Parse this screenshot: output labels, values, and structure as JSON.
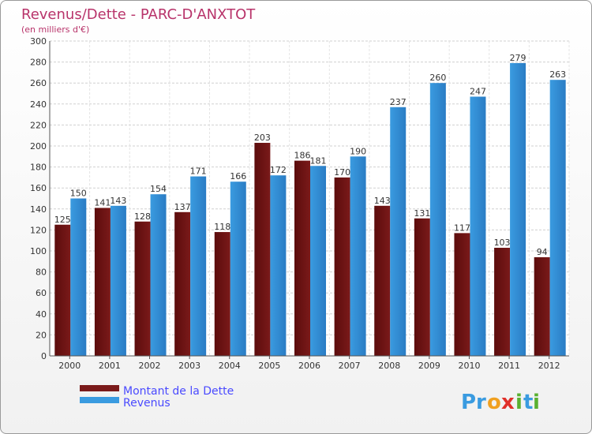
{
  "colors": {
    "dette": "#7a1a1a",
    "revenus": "#3a9be0",
    "title": "#b8336a",
    "legend_text": "#4a4aff"
  },
  "chart_data": {
    "type": "bar",
    "title": "Revenus/Dette - PARC-D'ANXTOT",
    "subtitle": "(en milliers d'€)",
    "categories": [
      "2000",
      "2001",
      "2002",
      "2003",
      "2004",
      "2005",
      "2006",
      "2007",
      "2008",
      "2009",
      "2010",
      "2011",
      "2012"
    ],
    "series": [
      {
        "name": "Montant de la Dette",
        "values": [
          125,
          141,
          128,
          137,
          118,
          203,
          186,
          170,
          143,
          131,
          117,
          103,
          94
        ]
      },
      {
        "name": "Revenus",
        "values": [
          150,
          143,
          154,
          171,
          166,
          172,
          181,
          190,
          237,
          260,
          247,
          279,
          263
        ]
      }
    ],
    "ylim": [
      0,
      300
    ],
    "ytick_step": 20,
    "grid": true,
    "legend_position": "bottom-left"
  },
  "logo": {
    "letters": [
      "P",
      "r",
      "o",
      "x",
      "i",
      "t",
      "i"
    ],
    "letter_colors": [
      "#3a9be0",
      "#3a9be0",
      "#f0a020",
      "#e0302a",
      "#5ab030",
      "#3a9be0",
      "#5ab030"
    ]
  }
}
